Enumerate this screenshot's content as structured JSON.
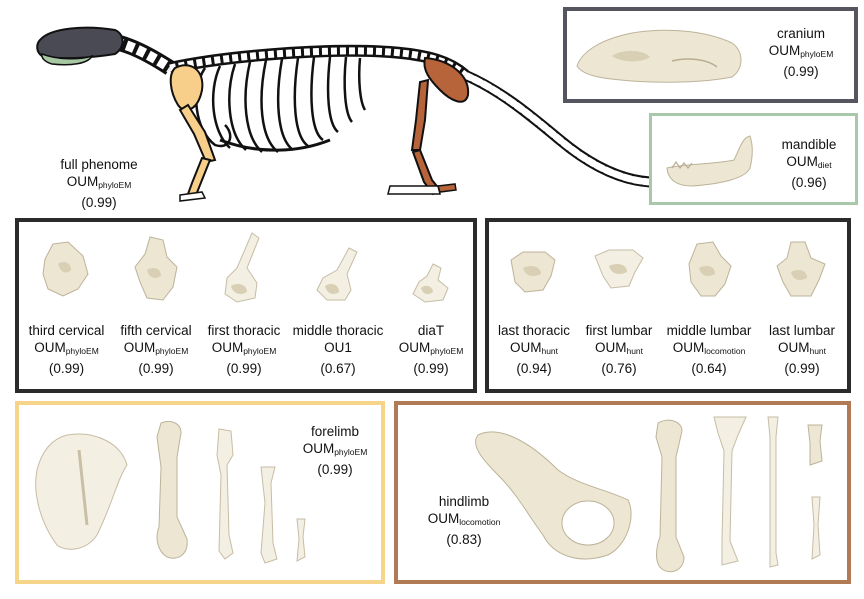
{
  "skeleton": {
    "label": "full phenome",
    "model_main": "OUM",
    "model_sub": "phyloEM",
    "score": "(0.99)"
  },
  "cranium": {
    "label": "cranium",
    "model_main": "OUM",
    "model_sub": "phyloEM",
    "score": "(0.99)"
  },
  "mandible": {
    "label": "mandible",
    "model_main": "OUM",
    "model_sub": "diet",
    "score": "(0.96)"
  },
  "vertebrae_anterior": [
    {
      "label": "third cervical",
      "model_main": "OUM",
      "model_sub": "phyloEM",
      "score": "(0.99)"
    },
    {
      "label": "fifth cervical",
      "model_main": "OUM",
      "model_sub": "phyloEM",
      "score": "(0.99)"
    },
    {
      "label": "first thoracic",
      "model_main": "OUM",
      "model_sub": "phyloEM",
      "score": "(0.99)"
    },
    {
      "label": "middle thoracic",
      "model_main": "OU1",
      "model_sub": "",
      "score": "(0.67)"
    },
    {
      "label": "diaT",
      "model_main": "OUM",
      "model_sub": "phyloEM",
      "score": "(0.99)"
    }
  ],
  "vertebrae_posterior": [
    {
      "label": "last thoracic",
      "model_main": "OUM",
      "model_sub": "hunt",
      "score": "(0.94)"
    },
    {
      "label": "first lumbar",
      "model_main": "OUM",
      "model_sub": "hunt",
      "score": "(0.76)"
    },
    {
      "label": "middle lumbar",
      "model_main": "OUM",
      "model_sub": "locomotion",
      "score": "(0.64)"
    },
    {
      "label": "last lumbar",
      "model_main": "OUM",
      "model_sub": "hunt",
      "score": "(0.99)"
    }
  ],
  "forelimb": {
    "label": "forelimb",
    "model_main": "OUM",
    "model_sub": "phyloEM",
    "score": "(0.99)"
  },
  "hindlimb": {
    "label": "hindlimb",
    "model_main": "OUM",
    "model_sub": "locomotion",
    "score": "(0.83)"
  },
  "colors": {
    "cranium_border": "#55555f",
    "mandible_border": "#a9c7a9",
    "vertebrae_border": "#2b2b2b",
    "forelimb_border": "#f6d48a",
    "hindlimb_border": "#b07a55",
    "forelimb_fill": "#f7cf8a",
    "hindlimb_fill": "#b8643a",
    "cranium_fill": "#4a4a55",
    "mandible_fill": "#a8c8a4"
  }
}
